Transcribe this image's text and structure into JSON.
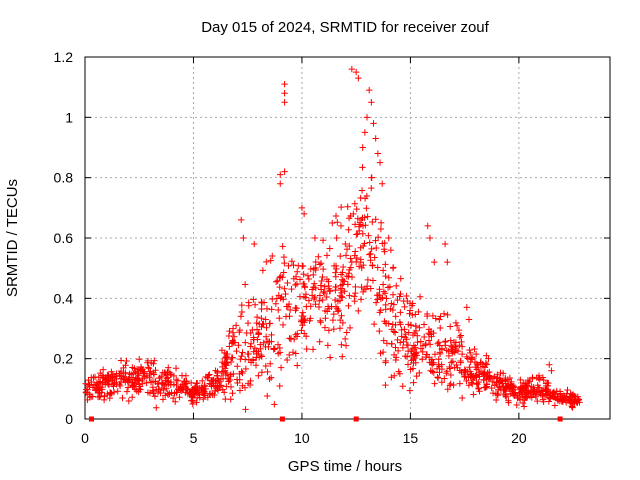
{
  "chart_data": {
    "type": "scatter",
    "title": "Day 015 of 2024, SRMTID for receiver zouf",
    "xlabel": "GPS time / hours",
    "ylabel": "SRMTID / TECUs",
    "xlim": [
      0,
      24.2
    ],
    "ylim": [
      0,
      1.2
    ],
    "x_ticks": [
      0,
      5,
      10,
      15,
      20
    ],
    "y_ticks": [
      0,
      0.2,
      0.4,
      0.6,
      0.8,
      1,
      1.2
    ],
    "x_tick_labels": [
      "0",
      "5",
      "10",
      "15",
      "20"
    ],
    "y_tick_labels": [
      "0",
      "0.2",
      "0.4",
      "0.6",
      "0.8",
      "1",
      "1.2"
    ],
    "grid": true,
    "legend": "none",
    "marker": "+",
    "series_color": "#ff0000",
    "envelope_note": "approximate median and spread of the point cloud by hour",
    "envelope": [
      {
        "x": 0.0,
        "median": 0.09,
        "spread": 0.03
      },
      {
        "x": 1.0,
        "median": 0.12,
        "spread": 0.04
      },
      {
        "x": 2.0,
        "median": 0.13,
        "spread": 0.05
      },
      {
        "x": 3.0,
        "median": 0.13,
        "spread": 0.05
      },
      {
        "x": 4.0,
        "median": 0.12,
        "spread": 0.04
      },
      {
        "x": 5.0,
        "median": 0.09,
        "spread": 0.03
      },
      {
        "x": 6.0,
        "median": 0.11,
        "spread": 0.03
      },
      {
        "x": 7.0,
        "median": 0.22,
        "spread": 0.12
      },
      {
        "x": 8.0,
        "median": 0.25,
        "spread": 0.14
      },
      {
        "x": 9.0,
        "median": 0.35,
        "spread": 0.18
      },
      {
        "x": 10.0,
        "median": 0.42,
        "spread": 0.15
      },
      {
        "x": 11.0,
        "median": 0.4,
        "spread": 0.13
      },
      {
        "x": 12.0,
        "median": 0.45,
        "spread": 0.16
      },
      {
        "x": 13.0,
        "median": 0.65,
        "spread": 0.2
      },
      {
        "x": 14.0,
        "median": 0.35,
        "spread": 0.15
      },
      {
        "x": 15.0,
        "median": 0.25,
        "spread": 0.12
      },
      {
        "x": 16.0,
        "median": 0.25,
        "spread": 0.12
      },
      {
        "x": 17.0,
        "median": 0.2,
        "spread": 0.08
      },
      {
        "x": 18.0,
        "median": 0.15,
        "spread": 0.05
      },
      {
        "x": 19.0,
        "median": 0.12,
        "spread": 0.04
      },
      {
        "x": 20.0,
        "median": 0.09,
        "spread": 0.03
      },
      {
        "x": 21.0,
        "median": 0.1,
        "spread": 0.03
      },
      {
        "x": 22.0,
        "median": 0.07,
        "spread": 0.02
      },
      {
        "x": 23.0,
        "median": 0.06,
        "spread": 0.02
      }
    ],
    "highlight_points": [
      [
        9.2,
        1.11
      ],
      [
        9.2,
        1.08
      ],
      [
        9.2,
        1.05
      ],
      [
        9.0,
        0.81
      ],
      [
        9.0,
        0.78
      ],
      [
        9.2,
        0.82
      ],
      [
        12.3,
        1.16
      ],
      [
        12.5,
        1.15
      ],
      [
        12.6,
        1.13
      ],
      [
        13.1,
        1.09
      ],
      [
        13.2,
        1.05
      ],
      [
        13.0,
        1.0
      ],
      [
        13.3,
        0.98
      ],
      [
        12.9,
        0.95
      ],
      [
        13.4,
        0.93
      ],
      [
        12.8,
        0.9
      ],
      [
        13.5,
        0.88
      ],
      [
        13.6,
        0.85
      ],
      [
        13.2,
        0.8
      ],
      [
        13.7,
        0.78
      ],
      [
        7.2,
        0.66
      ],
      [
        7.3,
        0.6
      ],
      [
        7.8,
        0.58
      ],
      [
        10.0,
        0.7
      ],
      [
        10.1,
        0.68
      ],
      [
        10.6,
        0.6
      ],
      [
        11.6,
        0.6
      ],
      [
        11.8,
        0.64
      ],
      [
        12.0,
        0.58
      ],
      [
        14.0,
        0.6
      ],
      [
        14.1,
        0.56
      ],
      [
        14.2,
        0.5
      ],
      [
        15.8,
        0.64
      ],
      [
        15.9,
        0.6
      ],
      [
        16.1,
        0.52
      ],
      [
        16.6,
        0.58
      ],
      [
        16.7,
        0.52
      ],
      [
        17.6,
        0.37
      ],
      [
        17.7,
        0.33
      ],
      [
        18.5,
        0.21
      ],
      [
        18.6,
        0.2
      ],
      [
        21.4,
        0.18
      ],
      [
        21.5,
        0.16
      ]
    ],
    "zero_points": [
      [
        0.3,
        0.0
      ],
      [
        9.1,
        0.0
      ],
      [
        12.5,
        0.0
      ],
      [
        21.9,
        0.0
      ]
    ]
  }
}
